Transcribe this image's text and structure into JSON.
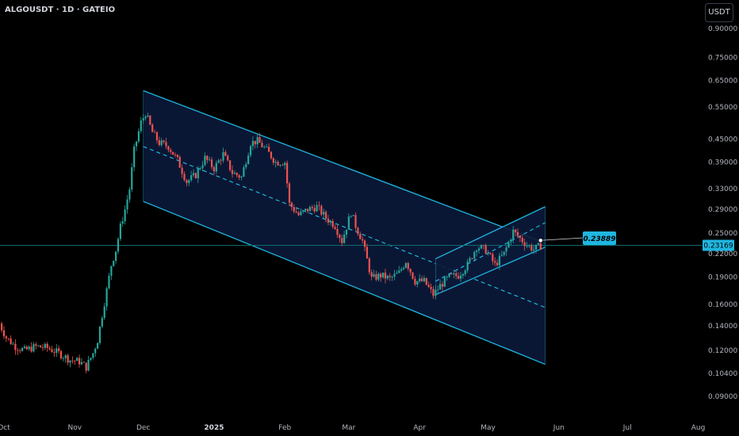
{
  "header": {
    "symbol": "ALGOUSDT · 1D · GATEIO",
    "currency": "USDT"
  },
  "colors": {
    "background": "#000000",
    "bull": "#26a69a",
    "bear": "#ef5350",
    "channel": "#1fb6e0",
    "channel_fill": "#0b1a3a",
    "label_bg": "#1fb6e0",
    "price_line": "#0e6b6b"
  },
  "chart_data": {
    "type": "candlestick",
    "symbol": "ALGOUSDT",
    "interval": "1D",
    "exchange": "GATEIO",
    "y_scale": "log",
    "ylim": [
      0.085,
      0.98
    ],
    "y_ticks": [
      "0.90000",
      "0.75000",
      "0.65000",
      "0.55000",
      "0.45000",
      "0.39000",
      "0.33000",
      "0.29000",
      "0.25000",
      "0.22000",
      "0.19000",
      "0.16000",
      "0.14000",
      "0.12000",
      "0.10400",
      "0.09000"
    ],
    "x_ticks": [
      {
        "label": "Oct",
        "date": "2024-10-01",
        "bold": false
      },
      {
        "label": "Nov",
        "date": "2024-11-01",
        "bold": false
      },
      {
        "label": "Dec",
        "date": "2024-12-01",
        "bold": false
      },
      {
        "label": "2025",
        "date": "2025-01-01",
        "bold": true
      },
      {
        "label": "Feb",
        "date": "2025-02-01",
        "bold": false
      },
      {
        "label": "Mar",
        "date": "2025-03-01",
        "bold": false
      },
      {
        "label": "Apr",
        "date": "2025-04-01",
        "bold": false
      },
      {
        "label": "May",
        "date": "2025-05-01",
        "bold": false
      },
      {
        "label": "Jun",
        "date": "2025-06-01",
        "bold": false
      },
      {
        "label": "Jul",
        "date": "2025-07-01",
        "bold": false
      },
      {
        "label": "Aug",
        "date": "2025-08-01",
        "bold": false
      }
    ],
    "close_path": [
      [
        "2024-09-29",
        0.142
      ],
      [
        "2024-10-02",
        0.13
      ],
      [
        "2024-10-06",
        0.123
      ],
      [
        "2024-10-10",
        0.12
      ],
      [
        "2024-10-15",
        0.123
      ],
      [
        "2024-10-20",
        0.122
      ],
      [
        "2024-10-25",
        0.118
      ],
      [
        "2024-10-30",
        0.113
      ],
      [
        "2024-11-03",
        0.112
      ],
      [
        "2024-11-06",
        0.108
      ],
      [
        "2024-11-09",
        0.118
      ],
      [
        "2024-11-11",
        0.128
      ],
      [
        "2024-11-13",
        0.15
      ],
      [
        "2024-11-15",
        0.175
      ],
      [
        "2024-11-17",
        0.205
      ],
      [
        "2024-11-19",
        0.225
      ],
      [
        "2024-11-21",
        0.26
      ],
      [
        "2024-11-23",
        0.29
      ],
      [
        "2024-11-25",
        0.33
      ],
      [
        "2024-11-27",
        0.42
      ],
      [
        "2024-11-30",
        0.5
      ],
      [
        "2024-12-02",
        0.53
      ],
      [
        "2024-12-05",
        0.47
      ],
      [
        "2024-12-08",
        0.44
      ],
      [
        "2024-12-12",
        0.43
      ],
      [
        "2024-12-16",
        0.395
      ],
      [
        "2024-12-20",
        0.345
      ],
      [
        "2024-12-24",
        0.36
      ],
      [
        "2024-12-28",
        0.4
      ],
      [
        "2025-01-01",
        0.375
      ],
      [
        "2025-01-05",
        0.41
      ],
      [
        "2025-01-09",
        0.365
      ],
      [
        "2025-01-13",
        0.355
      ],
      [
        "2025-01-17",
        0.44
      ],
      [
        "2025-01-20",
        0.445
      ],
      [
        "2025-01-24",
        0.42
      ],
      [
        "2025-01-28",
        0.39
      ],
      [
        "2025-02-01",
        0.39
      ],
      [
        "2025-02-03",
        0.3
      ],
      [
        "2025-02-07",
        0.28
      ],
      [
        "2025-02-11",
        0.29
      ],
      [
        "2025-02-15",
        0.295
      ],
      [
        "2025-02-19",
        0.275
      ],
      [
        "2025-02-23",
        0.262
      ],
      [
        "2025-02-26",
        0.238
      ],
      [
        "2025-03-02",
        0.285
      ],
      [
        "2025-03-04",
        0.262
      ],
      [
        "2025-03-07",
        0.238
      ],
      [
        "2025-03-11",
        0.188
      ],
      [
        "2025-03-15",
        0.192
      ],
      [
        "2025-03-19",
        0.188
      ],
      [
        "2025-03-23",
        0.195
      ],
      [
        "2025-03-26",
        0.21
      ],
      [
        "2025-03-30",
        0.185
      ],
      [
        "2025-04-03",
        0.185
      ],
      [
        "2025-04-07",
        0.17
      ],
      [
        "2025-04-10",
        0.18
      ],
      [
        "2025-04-14",
        0.19
      ],
      [
        "2025-04-18",
        0.192
      ],
      [
        "2025-04-22",
        0.205
      ],
      [
        "2025-04-26",
        0.23
      ],
      [
        "2025-04-30",
        0.225
      ],
      [
        "2025-05-04",
        0.205
      ],
      [
        "2025-05-08",
        0.22
      ],
      [
        "2025-05-12",
        0.253
      ],
      [
        "2025-05-15",
        0.242
      ],
      [
        "2025-05-18",
        0.232
      ],
      [
        "2025-05-21",
        0.226
      ],
      [
        "2025-05-24",
        0.231
      ]
    ],
    "current_price": 0.23169,
    "current_price_label": "0.23169",
    "annotation": {
      "label": "0.23889",
      "value": 0.23889,
      "date": "2025-05-24"
    },
    "drawings": {
      "large_channel": {
        "upper": [
          [
            "2024-12-01",
            0.61
          ],
          [
            "2025-05-26",
            0.235
          ]
        ],
        "median": [
          [
            "2024-12-01",
            0.43
          ],
          [
            "2025-05-26",
            0.157
          ]
        ],
        "lower": [
          [
            "2024-12-01",
            0.305
          ],
          [
            "2025-05-26",
            0.11
          ]
        ]
      },
      "small_channel": {
        "upper": [
          [
            "2025-04-08",
            0.213
          ],
          [
            "2025-05-26",
            0.295
          ]
        ],
        "median": [
          [
            "2025-04-08",
            0.185
          ],
          [
            "2025-05-26",
            0.267
          ]
        ],
        "lower": [
          [
            "2025-04-08",
            0.17
          ],
          [
            "2025-05-26",
            0.229
          ]
        ]
      }
    }
  }
}
